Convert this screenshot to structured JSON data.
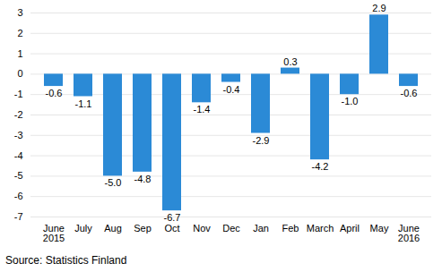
{
  "chart_data": {
    "type": "bar",
    "caption": "Source: Statistics Finland",
    "categories": [
      "June\n2015",
      "July",
      "Aug",
      "Sep",
      "Oct",
      "Nov",
      "Dec",
      "Jan",
      "Feb",
      "March",
      "April",
      "May",
      "June\n2016"
    ],
    "values": [
      -0.6,
      -1.1,
      -5.0,
      -4.8,
      -6.7,
      -1.4,
      -0.4,
      -2.9,
      0.3,
      -4.2,
      -1.0,
      2.9,
      -0.6
    ],
    "value_labels": [
      "-0.6",
      "-1.1",
      "-5.0",
      "-4.8",
      "-6.7",
      "-1.4",
      "-0.4",
      "-2.9",
      "0.3",
      "-4.2",
      "-1.0",
      "2.9",
      "-0.6"
    ],
    "color": "#2b8ad6",
    "ylim": [
      -7,
      3
    ],
    "yticks": [
      -7,
      -6,
      -5,
      -4,
      -3,
      -2,
      -1,
      0,
      1,
      2,
      3
    ],
    "grid": true,
    "data_labels": true
  }
}
